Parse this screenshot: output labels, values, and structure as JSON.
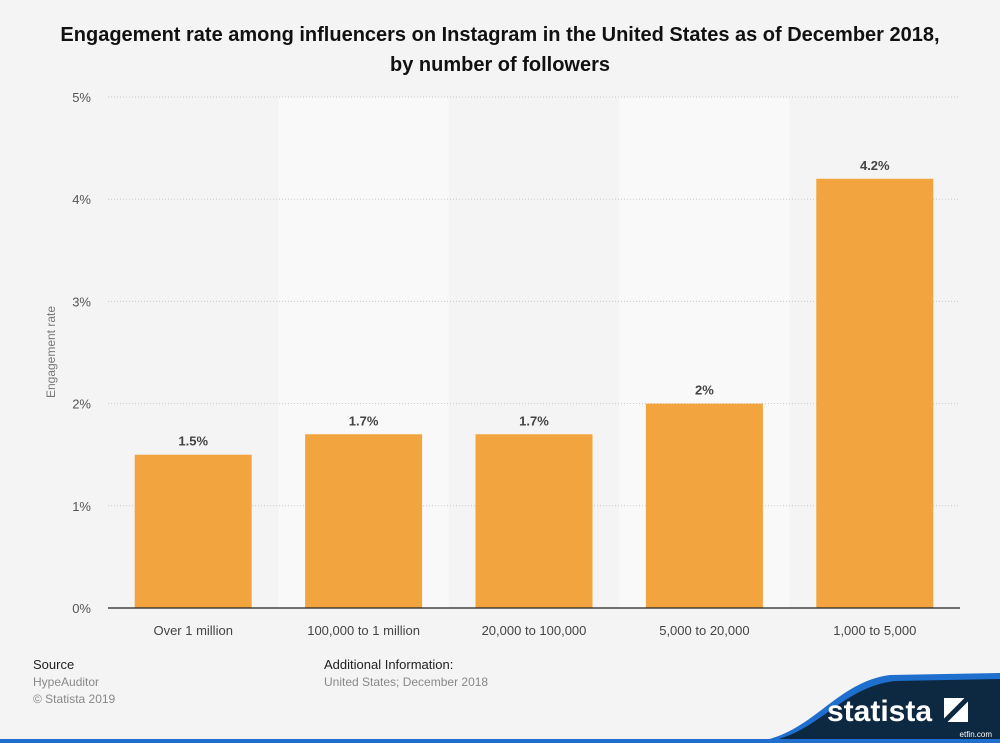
{
  "chart_data": {
    "type": "bar",
    "title": "Engagement rate among influencers on Instagram in the United States as of December 2018, by number of followers",
    "xlabel": "",
    "ylabel": "Engagement rate",
    "ylim": [
      0,
      5
    ],
    "yticks": [
      "0%",
      "1%",
      "2%",
      "3%",
      "4%",
      "5%"
    ],
    "grid": true,
    "categories": [
      "Over 1 million",
      "100,000 to 1 million",
      "20,000 to 100,000",
      "5,000 to 20,000",
      "1,000 to 5,000"
    ],
    "values": [
      1.5,
      1.7,
      1.7,
      2,
      4.2
    ],
    "data_labels": [
      "1.5%",
      "1.7%",
      "1.7%",
      "2%",
      "4.2%"
    ],
    "bar_color": "#f2a53f"
  },
  "footer": {
    "source_heading": "Source",
    "source": "HypeAuditor",
    "copyright": "© Statista 2019",
    "info_heading": "Additional Information:",
    "info": "United States; December 2018"
  },
  "logo": {
    "text": "statista",
    "watermark": "etfin.com"
  }
}
